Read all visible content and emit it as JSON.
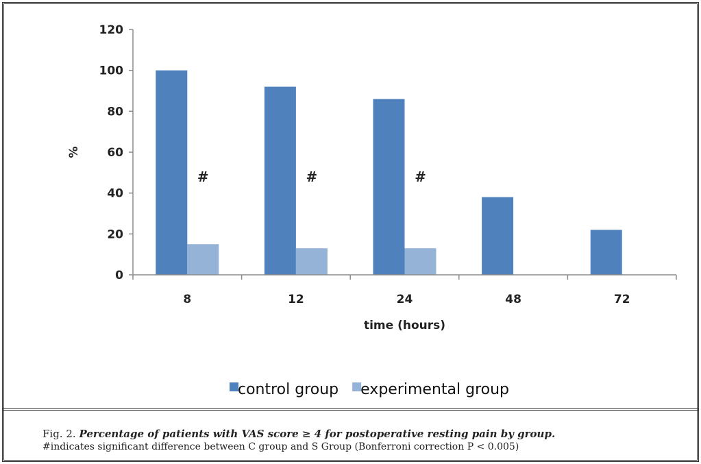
{
  "chart_data": {
    "type": "bar",
    "categories": [
      "8",
      "12",
      "24",
      "48",
      "72"
    ],
    "series": [
      {
        "name": "control group",
        "color": "#4f81bd",
        "values": [
          100,
          92,
          86,
          38,
          22
        ]
      },
      {
        "name": "experimental group",
        "color": "#95b3d7",
        "values": [
          15,
          13,
          13,
          0,
          0
        ]
      }
    ],
    "xlabel": "time (hours)",
    "ylabel": "%",
    "ylim": [
      0,
      120
    ],
    "yticks": [
      0,
      20,
      40,
      60,
      80,
      100,
      120
    ],
    "annotations": [
      "#",
      "#",
      "#"
    ],
    "annotation_categories": [
      "8",
      "12",
      "24"
    ],
    "annotation_y": 48,
    "legend_position": "bottom",
    "grid": false
  },
  "caption": {
    "label": "Fig. 2.",
    "title": "Percentage of patients with VAS score ≥ 4 for postoperative resting pain by group.",
    "note": "#indicates significant difference between C group and S Group (Bonferroni correction P < 0.005)"
  }
}
